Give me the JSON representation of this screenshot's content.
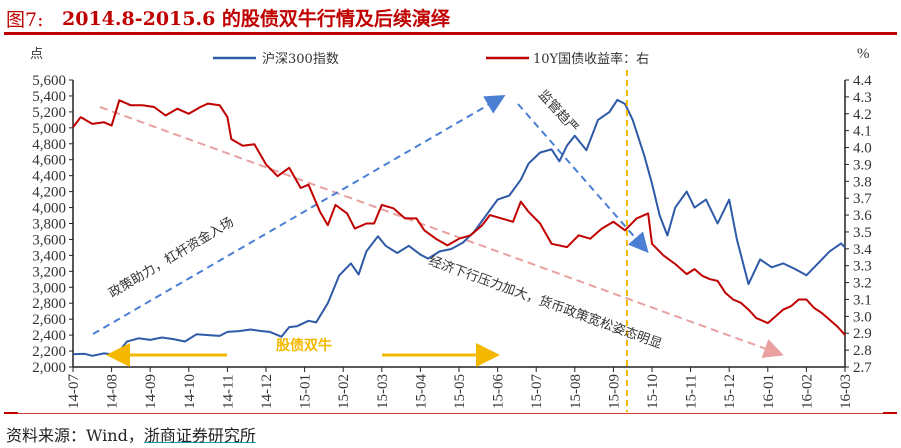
{
  "title": {
    "prefix": "图7:",
    "text": "2014.8-2015.6 的股债双牛行情及后续演绎"
  },
  "source": {
    "label": "资料来源：Wind，",
    "link": "浙商证券研究所"
  },
  "colors": {
    "index": "#2e5aa8",
    "yield": "#c00000",
    "accent": "#c00000",
    "gold": "#f5b800",
    "trend_up": "#4a7fd4",
    "trend_down": "#e8a0a0"
  },
  "chart_data": {
    "type": "line",
    "title": "2014.8-2015.6 的股债双牛行情及后续演绎",
    "xlabel": "",
    "ylabel": "点",
    "ylabel_right": "%",
    "categories": [
      "14-07",
      "14-08",
      "14-09",
      "14-10",
      "14-11",
      "14-12",
      "15-01",
      "15-02",
      "15-03",
      "15-04",
      "15-05",
      "15-06",
      "15-07",
      "15-08",
      "15-09",
      "15-10",
      "15-11",
      "15-12",
      "16-01",
      "16-02",
      "16-03"
    ],
    "ylim": [
      2000,
      5600
    ],
    "y_ticks": [
      "2,000",
      "2,200",
      "2,400",
      "2,600",
      "2,800",
      "3,000",
      "3,200",
      "3,400",
      "3,600",
      "3,800",
      "4,000",
      "4,200",
      "4,400",
      "4,600",
      "4,800",
      "5,000",
      "5,200",
      "5,400",
      "5,600"
    ],
    "ylim_right": [
      2.7,
      4.4
    ],
    "y_ticks_right": [
      "2.7",
      "2.8",
      "2.9",
      "3.0",
      "3.1",
      "3.2",
      "3.3",
      "3.4",
      "3.5",
      "3.6",
      "3.7",
      "3.8",
      "3.9",
      "4.0",
      "4.1",
      "4.2",
      "4.3",
      "4.4"
    ],
    "grid": false,
    "legend_position": "top",
    "series": [
      {
        "name": "沪深300指数",
        "axis": "left",
        "points": [
          [
            0,
            2160
          ],
          [
            0.3,
            2165
          ],
          [
            0.5,
            2140
          ],
          [
            0.8,
            2170
          ],
          [
            1.0,
            2160
          ],
          [
            1.2,
            2200
          ],
          [
            1.4,
            2320
          ],
          [
            1.7,
            2360
          ],
          [
            2.0,
            2340
          ],
          [
            2.3,
            2370
          ],
          [
            2.6,
            2350
          ],
          [
            2.9,
            2320
          ],
          [
            3.2,
            2410
          ],
          [
            3.5,
            2400
          ],
          [
            3.8,
            2390
          ],
          [
            4.0,
            2440
          ],
          [
            4.3,
            2450
          ],
          [
            4.6,
            2470
          ],
          [
            4.9,
            2450
          ],
          [
            5.1,
            2440
          ],
          [
            5.4,
            2380
          ],
          [
            5.6,
            2500
          ],
          [
            5.8,
            2510
          ],
          [
            6.1,
            2580
          ],
          [
            6.3,
            2560
          ],
          [
            6.6,
            2800
          ],
          [
            6.9,
            3150
          ],
          [
            7.2,
            3300
          ],
          [
            7.4,
            3160
          ],
          [
            7.6,
            3450
          ],
          [
            7.9,
            3640
          ],
          [
            8.1,
            3520
          ],
          [
            8.4,
            3430
          ],
          [
            8.7,
            3520
          ],
          [
            9.0,
            3410
          ],
          [
            9.2,
            3360
          ],
          [
            9.5,
            3450
          ],
          [
            9.8,
            3480
          ],
          [
            10.1,
            3560
          ],
          [
            10.4,
            3700
          ],
          [
            10.7,
            3900
          ],
          [
            11.0,
            4100
          ],
          [
            11.3,
            4150
          ],
          [
            11.6,
            4350
          ],
          [
            11.8,
            4550
          ],
          [
            12.1,
            4690
          ],
          [
            12.4,
            4730
          ],
          [
            12.6,
            4580
          ],
          [
            12.8,
            4780
          ],
          [
            13.0,
            4900
          ],
          [
            13.3,
            4720
          ],
          [
            13.6,
            5100
          ],
          [
            13.9,
            5200
          ],
          [
            14.1,
            5350
          ],
          [
            14.3,
            5300
          ],
          [
            14.5,
            5100
          ],
          [
            14.8,
            4650
          ],
          [
            15.0,
            4300
          ],
          [
            15.2,
            3900
          ],
          [
            15.4,
            3650
          ],
          [
            15.6,
            4000
          ],
          [
            15.9,
            4200
          ],
          [
            16.1,
            4000
          ],
          [
            16.4,
            4100
          ],
          [
            16.7,
            3800
          ],
          [
            17.0,
            4100
          ],
          [
            17.2,
            3600
          ],
          [
            17.5,
            3040
          ],
          [
            17.8,
            3350
          ],
          [
            18.1,
            3250
          ],
          [
            18.4,
            3300
          ],
          [
            18.7,
            3230
          ],
          [
            19.0,
            3150
          ],
          [
            19.3,
            3300
          ],
          [
            19.6,
            3450
          ],
          [
            19.9,
            3550
          ],
          [
            20.0,
            3500
          ]
        ]
      },
      {
        "name": "10Y国债收益率：右",
        "axis": "right",
        "points": [
          [
            0,
            4.12
          ],
          [
            0.2,
            4.18
          ],
          [
            0.5,
            4.14
          ],
          [
            0.8,
            4.15
          ],
          [
            1.0,
            4.13
          ],
          [
            1.2,
            4.28
          ],
          [
            1.5,
            4.25
          ],
          [
            1.8,
            4.25
          ],
          [
            2.1,
            4.24
          ],
          [
            2.4,
            4.19
          ],
          [
            2.7,
            4.23
          ],
          [
            3.0,
            4.2
          ],
          [
            3.3,
            4.24
          ],
          [
            3.5,
            4.26
          ],
          [
            3.8,
            4.25
          ],
          [
            4.0,
            4.18
          ],
          [
            4.1,
            4.05
          ],
          [
            4.4,
            4.01
          ],
          [
            4.7,
            4.02
          ],
          [
            5.0,
            3.9
          ],
          [
            5.3,
            3.83
          ],
          [
            5.6,
            3.88
          ],
          [
            5.9,
            3.76
          ],
          [
            6.1,
            3.78
          ],
          [
            6.4,
            3.62
          ],
          [
            6.6,
            3.54
          ],
          [
            6.8,
            3.66
          ],
          [
            7.1,
            3.61
          ],
          [
            7.3,
            3.52
          ],
          [
            7.6,
            3.55
          ],
          [
            7.8,
            3.55
          ],
          [
            8.0,
            3.66
          ],
          [
            8.3,
            3.64
          ],
          [
            8.6,
            3.58
          ],
          [
            8.9,
            3.58
          ],
          [
            9.1,
            3.51
          ],
          [
            9.4,
            3.46
          ],
          [
            9.7,
            3.42
          ],
          [
            10.0,
            3.46
          ],
          [
            10.3,
            3.48
          ],
          [
            10.6,
            3.54
          ],
          [
            10.8,
            3.6
          ],
          [
            11.1,
            3.58
          ],
          [
            11.4,
            3.56
          ],
          [
            11.6,
            3.68
          ],
          [
            11.8,
            3.62
          ],
          [
            12.1,
            3.55
          ],
          [
            12.4,
            3.43
          ],
          [
            12.8,
            3.41
          ],
          [
            13.1,
            3.48
          ],
          [
            13.4,
            3.46
          ],
          [
            13.7,
            3.52
          ],
          [
            14.0,
            3.56
          ],
          [
            14.3,
            3.51
          ],
          [
            14.6,
            3.58
          ],
          [
            14.9,
            3.61
          ],
          [
            15.2,
            3.58
          ],
          [
            15.4,
            3.52
          ],
          [
            15.6,
            3.59
          ],
          [
            15.9,
            3.58
          ],
          [
            16.1,
            3.52
          ],
          [
            16.4,
            3.55
          ],
          [
            16.6,
            3.49
          ],
          [
            16.9,
            3.51
          ],
          [
            17.1,
            3.47
          ],
          [
            17.3,
            3.36
          ],
          [
            17.6,
            3.3
          ],
          [
            17.9,
            3.27
          ],
          [
            18.2,
            3.24
          ],
          [
            18.4,
            3.19
          ],
          [
            18.7,
            3.08
          ],
          [
            19.0,
            3.04
          ],
          [
            19.2,
            3.12
          ],
          [
            19.5,
            3.18
          ],
          [
            19.8,
            3.1
          ],
          [
            20.0,
            3.08
          ]
        ]
      }
    ]
  },
  "extra_series": {
    "yield_tail": [
      [
        15.0,
        3.43
      ],
      [
        15.3,
        3.36
      ],
      [
        15.6,
        3.31
      ],
      [
        15.9,
        3.25
      ],
      [
        16.1,
        3.28
      ],
      [
        16.3,
        3.24
      ],
      [
        16.5,
        3.22
      ],
      [
        16.7,
        3.21
      ],
      [
        16.9,
        3.14
      ],
      [
        17.1,
        3.1
      ],
      [
        17.3,
        3.08
      ],
      [
        17.5,
        3.04
      ],
      [
        17.7,
        2.99
      ],
      [
        18.0,
        2.96
      ],
      [
        18.2,
        3.0
      ],
      [
        18.4,
        3.04
      ],
      [
        18.6,
        3.06
      ],
      [
        18.8,
        3.1
      ],
      [
        19.0,
        3.1
      ],
      [
        19.2,
        3.05
      ],
      [
        19.4,
        3.02
      ],
      [
        19.6,
        2.98
      ],
      [
        19.8,
        2.94
      ],
      [
        20.0,
        2.89
      ]
    ]
  },
  "legend": [
    {
      "label": "沪深300指数",
      "color": "#2e5aa8"
    },
    {
      "label": "10Y国债收益率：右",
      "color": "#c00000"
    }
  ],
  "annotations": {
    "policy": "政策助力，杠杆资金入场",
    "regulation": "监管趋严",
    "economy": "经济下行压力加大，货币政策宽松姿态明显",
    "double_bull": "股债双牛"
  }
}
